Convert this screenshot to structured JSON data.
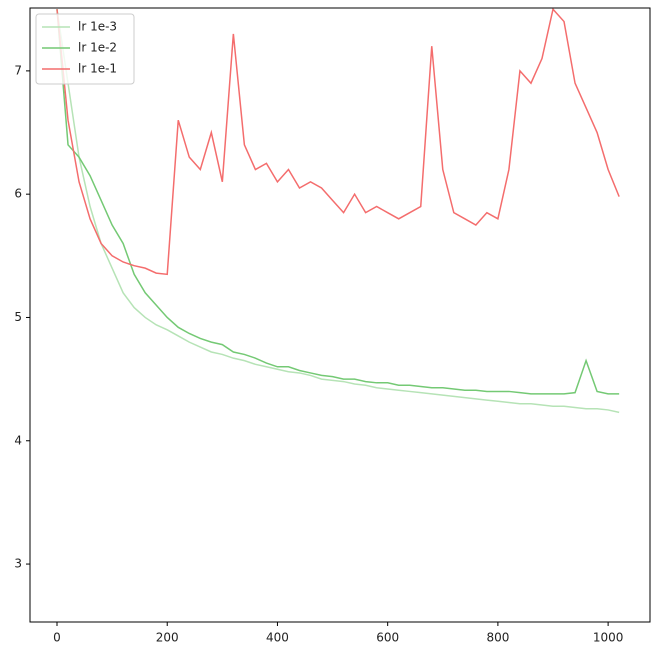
{
  "chart_data": {
    "type": "line",
    "x": [
      0,
      20,
      40,
      60,
      80,
      100,
      120,
      140,
      160,
      180,
      200,
      220,
      240,
      260,
      280,
      300,
      320,
      340,
      360,
      380,
      400,
      420,
      440,
      460,
      480,
      500,
      520,
      540,
      560,
      580,
      600,
      620,
      640,
      660,
      680,
      700,
      720,
      740,
      760,
      780,
      800,
      820,
      840,
      860,
      880,
      900,
      920,
      940,
      960,
      980,
      1000,
      1020
    ],
    "series": [
      {
        "name": "lr 1e-3",
        "color": "#b6e3b6",
        "values": [
          7.5,
          6.9,
          6.3,
          5.9,
          5.6,
          5.4,
          5.2,
          5.08,
          5.0,
          4.94,
          4.9,
          4.85,
          4.8,
          4.76,
          4.72,
          4.7,
          4.67,
          4.65,
          4.62,
          4.6,
          4.58,
          4.56,
          4.55,
          4.53,
          4.5,
          4.49,
          4.48,
          4.46,
          4.45,
          4.43,
          4.42,
          4.41,
          4.4,
          4.39,
          4.38,
          4.37,
          4.36,
          4.35,
          4.34,
          4.33,
          4.32,
          4.31,
          4.3,
          4.3,
          4.29,
          4.28,
          4.28,
          4.27,
          4.26,
          4.26,
          4.25,
          4.23
        ]
      },
      {
        "name": "lr 1e-2",
        "color": "#74c974",
        "values": [
          7.5,
          6.4,
          6.3,
          6.15,
          5.95,
          5.75,
          5.6,
          5.35,
          5.2,
          5.1,
          5.0,
          4.92,
          4.87,
          4.83,
          4.8,
          4.78,
          4.72,
          4.7,
          4.67,
          4.63,
          4.6,
          4.6,
          4.57,
          4.55,
          4.53,
          4.52,
          4.5,
          4.5,
          4.48,
          4.47,
          4.47,
          4.45,
          4.45,
          4.44,
          4.43,
          4.43,
          4.42,
          4.41,
          4.41,
          4.4,
          4.4,
          4.4,
          4.39,
          4.38,
          4.38,
          4.38,
          4.38,
          4.39,
          4.65,
          4.4,
          4.38,
          4.38
        ]
      },
      {
        "name": "lr 1e-1",
        "color": "#f46d6d",
        "values": [
          7.5,
          6.6,
          6.1,
          5.8,
          5.6,
          5.5,
          5.45,
          5.42,
          5.4,
          5.36,
          5.35,
          6.6,
          6.3,
          6.2,
          6.5,
          6.1,
          7.3,
          6.4,
          6.2,
          6.25,
          6.1,
          6.2,
          6.05,
          6.1,
          6.05,
          5.95,
          5.85,
          6.0,
          5.85,
          5.9,
          5.85,
          5.8,
          5.85,
          5.9,
          7.2,
          6.2,
          5.85,
          5.8,
          5.75,
          5.85,
          5.8,
          6.2,
          7.0,
          6.9,
          7.1,
          7.5,
          7.4,
          6.9,
          6.7,
          6.5,
          6.2,
          5.98
        ]
      }
    ],
    "xlim": [
      -49,
      1076
    ],
    "ylim": [
      2.53,
      7.51
    ],
    "xticks": [
      0,
      200,
      400,
      600,
      800,
      1000
    ],
    "yticks": [
      3,
      4,
      5,
      6,
      7
    ],
    "grid": false,
    "legend": "upper left"
  }
}
